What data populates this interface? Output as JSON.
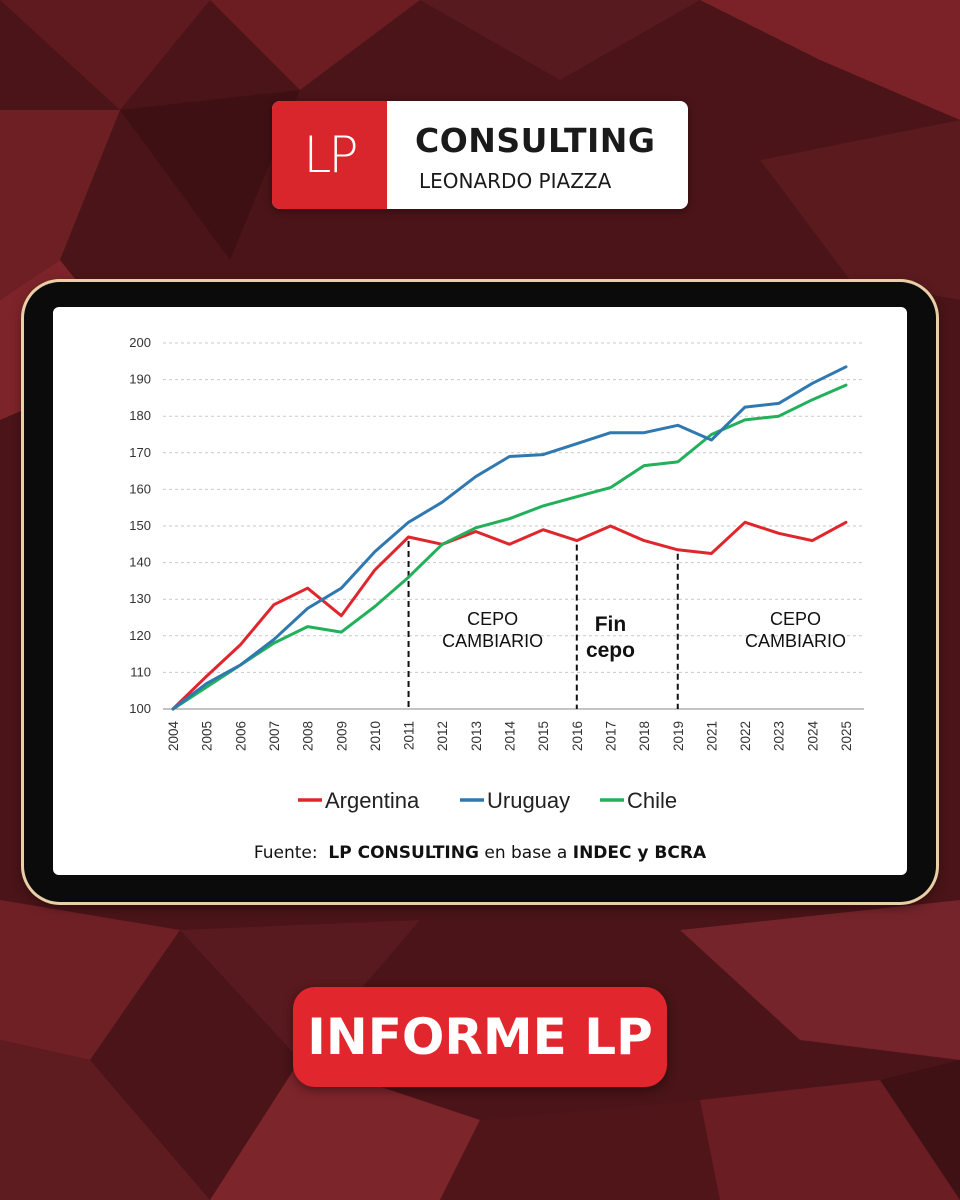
{
  "logo": {
    "mark": "LP",
    "title": "CONSULTING",
    "subtitle": "LEONARDO PIAZZA"
  },
  "source": {
    "prefix": "Fuente:",
    "brand": "LP CONSULTING",
    "middle": "en base a",
    "orgs": "INDEC y BCRA"
  },
  "badge": {
    "label": "INFORME LP"
  },
  "colors": {
    "background": "#4a1418",
    "accent": "#d8262c",
    "argentina": "#e0262c",
    "uruguay": "#2f78b0",
    "chile": "#22b05a",
    "tablet_frame": "#e9cfa6"
  },
  "chart_data": {
    "type": "line",
    "title": "",
    "xlabel": "",
    "ylabel": "",
    "ylim": [
      100,
      200
    ],
    "yticks": [
      100,
      110,
      120,
      130,
      140,
      150,
      160,
      170,
      180,
      190,
      200
    ],
    "grid": true,
    "legend_position": "bottom",
    "categories": [
      "2004",
      "2005",
      "2006",
      "2007",
      "2008",
      "2009",
      "2010",
      "2011",
      "2012",
      "2013",
      "2014",
      "2015",
      "2016",
      "2017",
      "2018",
      "2019",
      "2021",
      "2022",
      "2023",
      "2024",
      "2025"
    ],
    "series": [
      {
        "name": "Argentina",
        "values": [
          100,
          109,
          117.5,
          128.5,
          133,
          125.5,
          138,
          147,
          145,
          148.5,
          145,
          149,
          146,
          150,
          146,
          143.5,
          142.5,
          151,
          148,
          146,
          151
        ]
      },
      {
        "name": "Uruguay",
        "values": [
          100,
          107,
          112,
          119,
          127.5,
          133,
          143,
          151,
          156.5,
          163.5,
          169,
          169.5,
          172.5,
          175.5,
          175.5,
          177.5,
          173.5,
          182.5,
          183.5,
          189,
          193.5
        ]
      },
      {
        "name": "Chile",
        "values": [
          100,
          106,
          112,
          118,
          122.5,
          121,
          128,
          136,
          145,
          149.5,
          152,
          155.5,
          158,
          160.5,
          166.5,
          167.5,
          175,
          179,
          180,
          184.5,
          188.5
        ]
      }
    ],
    "markers": [
      {
        "at": "2011"
      },
      {
        "at": "2016"
      },
      {
        "at": "2019"
      }
    ],
    "annotations": [
      {
        "lines": [
          "CEPO",
          "CAMBIARIO"
        ],
        "at": "2013.5"
      },
      {
        "lines": [
          "Fin",
          "cepo"
        ],
        "at": "2017"
      },
      {
        "lines": [
          "CEPO",
          "CAMBIARIO"
        ],
        "at": "2023.5"
      }
    ]
  }
}
